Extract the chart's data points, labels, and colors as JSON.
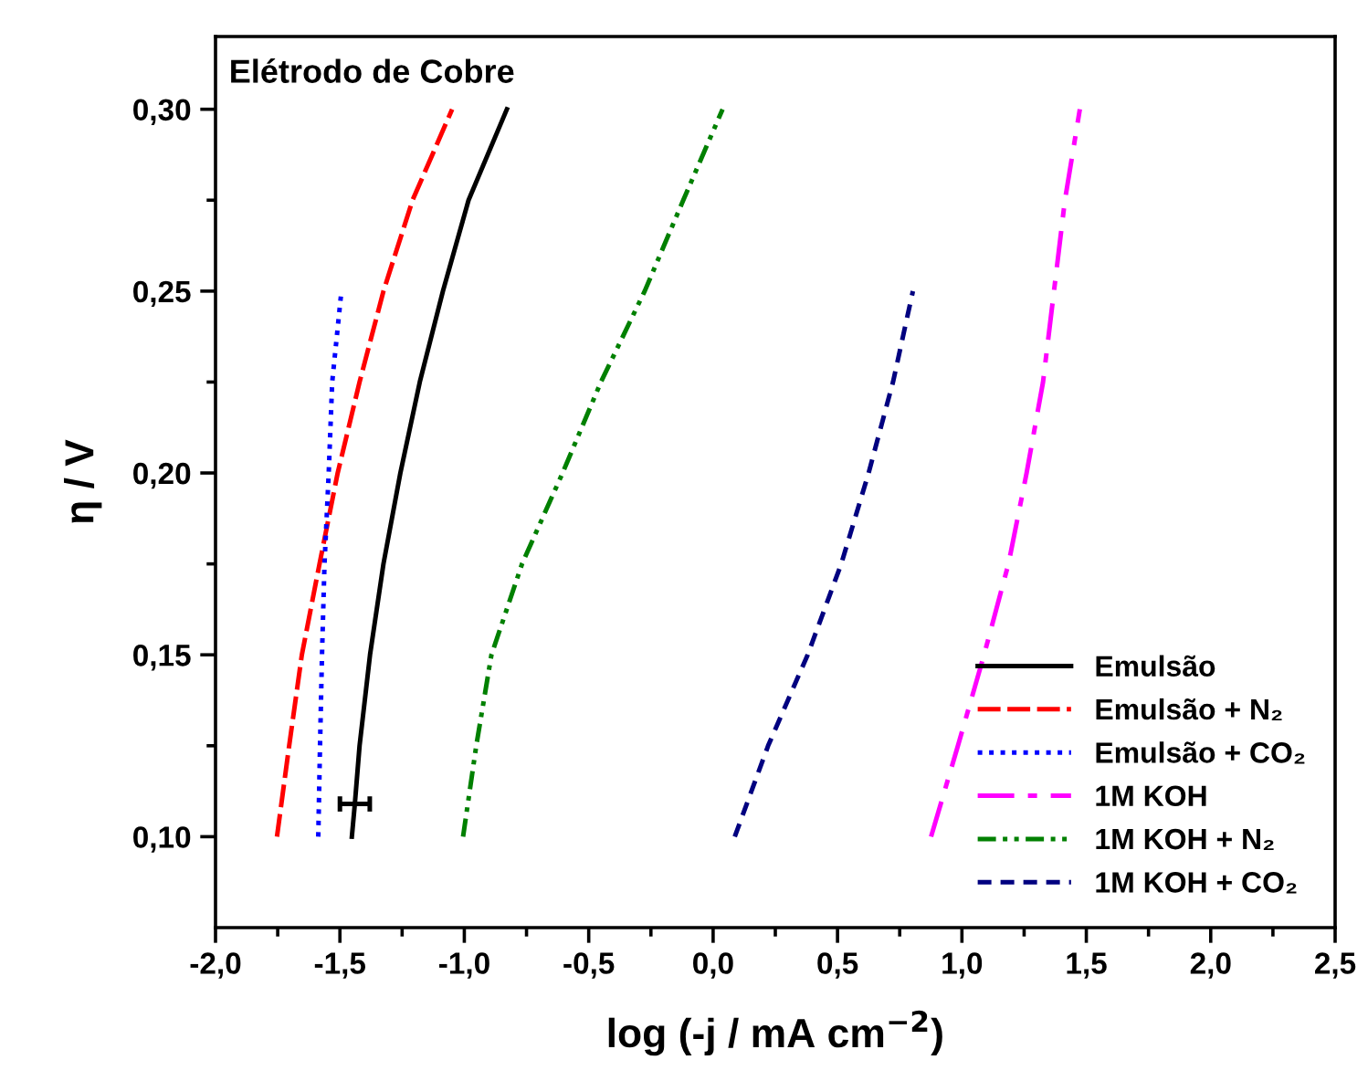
{
  "chart_data": {
    "type": "line",
    "title": "Elétrodo de Cobre",
    "xlabel": "log (-j / mA cm$^{−2}$)",
    "ylabel": "η / V",
    "xlim": [
      -2.0,
      2.5
    ],
    "ylim": [
      0.075,
      0.32
    ],
    "xticks": [
      {
        "value": -2.0,
        "label": "-2,0"
      },
      {
        "value": -1.75,
        "label": null
      },
      {
        "value": -1.5,
        "label": "-1,5"
      },
      {
        "value": -1.25,
        "label": null
      },
      {
        "value": -1.0,
        "label": "-1,0"
      },
      {
        "value": -0.75,
        "label": null
      },
      {
        "value": -0.5,
        "label": "-0,5"
      },
      {
        "value": -0.25,
        "label": null
      },
      {
        "value": 0.0,
        "label": "0,0"
      },
      {
        "value": 0.25,
        "label": null
      },
      {
        "value": 0.5,
        "label": "0,5"
      },
      {
        "value": 0.75,
        "label": null
      },
      {
        "value": 1.0,
        "label": "1,0"
      },
      {
        "value": 1.25,
        "label": null
      },
      {
        "value": 1.5,
        "label": "1,5"
      },
      {
        "value": 1.75,
        "label": null
      },
      {
        "value": 2.0,
        "label": "2,0"
      },
      {
        "value": 2.25,
        "label": null
      },
      {
        "value": 2.5,
        "label": "2,5"
      }
    ],
    "yticks": [
      {
        "value": 0.1,
        "label": "0,10"
      },
      {
        "value": 0.125,
        "label": null
      },
      {
        "value": 0.15,
        "label": "0,15"
      },
      {
        "value": 0.175,
        "label": null
      },
      {
        "value": 0.2,
        "label": "0,20"
      },
      {
        "value": 0.225,
        "label": null
      },
      {
        "value": 0.25,
        "label": "0,25"
      },
      {
        "value": 0.275,
        "label": null
      },
      {
        "value": 0.3,
        "label": "0,30"
      }
    ],
    "grid": false,
    "legend": "bottom right",
    "marker": "none",
    "series": [
      {
        "name": "Emulsão",
        "color": "#000000",
        "line_style": "solid",
        "x": [
          -1.452,
          -1.44,
          -1.421,
          -1.379,
          -1.325,
          -1.257,
          -1.179,
          -1.086,
          -0.983,
          -0.829
        ],
        "values": [
          0.1,
          0.109,
          0.125,
          0.15,
          0.175,
          0.2,
          0.225,
          0.25,
          0.275,
          0.3
        ],
        "xerrors": [
          null,
          0.06,
          null,
          null,
          null,
          null,
          null,
          null,
          null,
          null
        ]
      },
      {
        "name": "Emulsão + N₂",
        "color": "#ff0000",
        "line_style": "dashed",
        "x": [
          -1.753,
          -1.704,
          -1.653,
          -1.582,
          -1.509,
          -1.421,
          -1.325,
          -1.208,
          -1.049
        ],
        "values": [
          0.1,
          0.125,
          0.15,
          0.175,
          0.2,
          0.225,
          0.25,
          0.275,
          0.3
        ]
      },
      {
        "name": "Emulsão + CO₂",
        "color": "#0000ff",
        "line_style": "dotted",
        "x": [
          -1.587,
          -1.58,
          -1.572,
          -1.562,
          -1.545,
          -1.531,
          -1.494
        ],
        "values": [
          0.1,
          0.125,
          0.15,
          0.175,
          0.2,
          0.225,
          0.25
        ]
      },
      {
        "name": "1M KOH",
        "color": "#ff00ff",
        "line_style": "dashdot",
        "x": [
          0.876,
          0.984,
          1.089,
          1.187,
          1.26,
          1.326,
          1.37,
          1.414,
          1.474
        ],
        "values": [
          0.1,
          0.125,
          0.15,
          0.175,
          0.2,
          0.225,
          0.25,
          0.275,
          0.3
        ]
      },
      {
        "name": "1M KOH + N₂",
        "color": "#008000",
        "line_style": "dashdotdot",
        "x": [
          -1.005,
          -0.952,
          -0.891,
          -0.768,
          -0.605,
          -0.451,
          -0.275,
          -0.12,
          0.038
        ],
        "values": [
          0.1,
          0.125,
          0.15,
          0.175,
          0.2,
          0.225,
          0.25,
          0.275,
          0.3
        ]
      },
      {
        "name": "1M KOH + CO₂",
        "color": "#000080",
        "line_style": "shortdash",
        "x": [
          0.087,
          0.221,
          0.38,
          0.515,
          0.625,
          0.723,
          0.803
        ],
        "values": [
          0.1,
          0.125,
          0.15,
          0.175,
          0.2,
          0.225,
          0.25
        ]
      }
    ]
  }
}
